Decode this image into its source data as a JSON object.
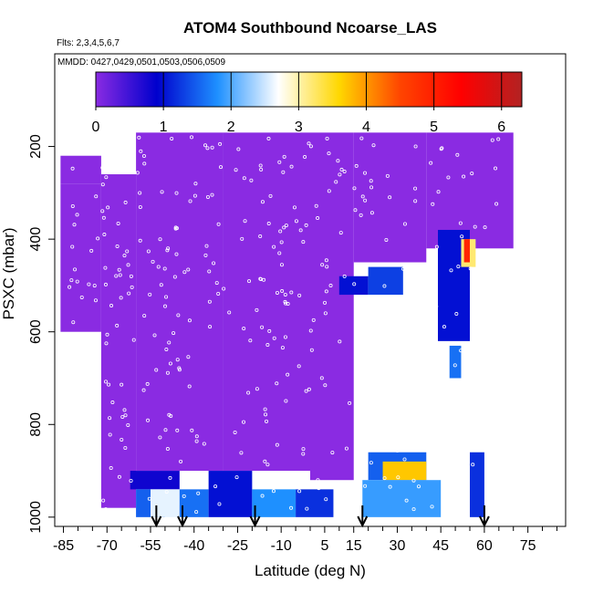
{
  "chart_data": {
    "type": "heatmap",
    "title": "ATOM4 Southbound Ncoarse_LAS",
    "subtitle_flights": "Flts: 2,3,4,5,6,7",
    "subtitle_dates": "MMDD: 0427,0429,0501,0503,0506,0509",
    "xlabel": "Latitude (deg N)",
    "ylabel": "PSXC (mbar)",
    "xlim": [
      -88,
      88
    ],
    "ylim": [
      1020,
      0
    ],
    "x_ticks": [
      -85,
      -70,
      -55,
      -40,
      -25,
      -10,
      5,
      15,
      30,
      45,
      60,
      75
    ],
    "y_ticks": [
      200,
      400,
      600,
      800,
      1000
    ],
    "colorbar": {
      "min": 0,
      "max": 6.3,
      "ticks": [
        0,
        1,
        2,
        3,
        4,
        5,
        6
      ],
      "colors": [
        "#8a2be2",
        "#0000cd",
        "#1e90ff",
        "#ffffff",
        "#ffd700",
        "#ff4500",
        "#ff0000",
        "#b22222"
      ]
    },
    "cells": [
      {
        "lat": [
          -86,
          -72
        ],
        "p": [
          220,
          280
        ],
        "value": 0
      },
      {
        "lat": [
          -86,
          -72
        ],
        "p": [
          280,
          600
        ],
        "value": 0
      },
      {
        "lat": [
          -72,
          -60
        ],
        "p": [
          260,
          980
        ],
        "value": 0
      },
      {
        "lat": [
          -60,
          -30
        ],
        "p": [
          170,
          900
        ],
        "value": 0
      },
      {
        "lat": [
          -30,
          0
        ],
        "p": [
          170,
          900
        ],
        "value": 0
      },
      {
        "lat": [
          0,
          15
        ],
        "p": [
          170,
          920
        ],
        "value": 0
      },
      {
        "lat": [
          15,
          40
        ],
        "p": [
          170,
          450
        ],
        "value": 0
      },
      {
        "lat": [
          40,
          70
        ],
        "p": [
          170,
          420
        ],
        "value": 0
      },
      {
        "lat": [
          -62,
          -45
        ],
        "p": [
          900,
          940
        ],
        "value": 0.8
      },
      {
        "lat": [
          -60,
          -50
        ],
        "p": [
          940,
          1000
        ],
        "value": 1.5
      },
      {
        "lat": [
          -55,
          -45
        ],
        "p": [
          940,
          1000
        ],
        "value": 2.6
      },
      {
        "lat": [
          -45,
          -35
        ],
        "p": [
          940,
          1000
        ],
        "value": 1.6
      },
      {
        "lat": [
          -35,
          -20
        ],
        "p": [
          900,
          1000
        ],
        "value": 1.0
      },
      {
        "lat": [
          -20,
          -5
        ],
        "p": [
          940,
          1000
        ],
        "value": 1.8
      },
      {
        "lat": [
          -5,
          8
        ],
        "p": [
          940,
          1000
        ],
        "value": 1.2
      },
      {
        "lat": [
          10,
          20
        ],
        "p": [
          480,
          520
        ],
        "value": 1.0
      },
      {
        "lat": [
          20,
          32
        ],
        "p": [
          460,
          520
        ],
        "value": 1.3
      },
      {
        "lat": [
          20,
          40
        ],
        "p": [
          860,
          920
        ],
        "value": 1.5
      },
      {
        "lat": [
          25,
          40
        ],
        "p": [
          880,
          920
        ],
        "value": 3.7
      },
      {
        "lat": [
          18,
          45
        ],
        "p": [
          920,
          1000
        ],
        "value": 1.9
      },
      {
        "lat": [
          44,
          55
        ],
        "p": [
          380,
          620
        ],
        "value": 1.0
      },
      {
        "lat": [
          48,
          52
        ],
        "p": [
          630,
          700
        ],
        "value": 1.6
      },
      {
        "lat": [
          52,
          57
        ],
        "p": [
          400,
          460
        ],
        "value": 3.2
      },
      {
        "lat": [
          53,
          55
        ],
        "p": [
          400,
          450
        ],
        "value": 4.9
      },
      {
        "lat": [
          55,
          60
        ],
        "p": [
          860,
          1000
        ],
        "value": 1.2
      }
    ],
    "arrows_lat": [
      -53,
      -44,
      -19,
      18,
      60
    ]
  }
}
